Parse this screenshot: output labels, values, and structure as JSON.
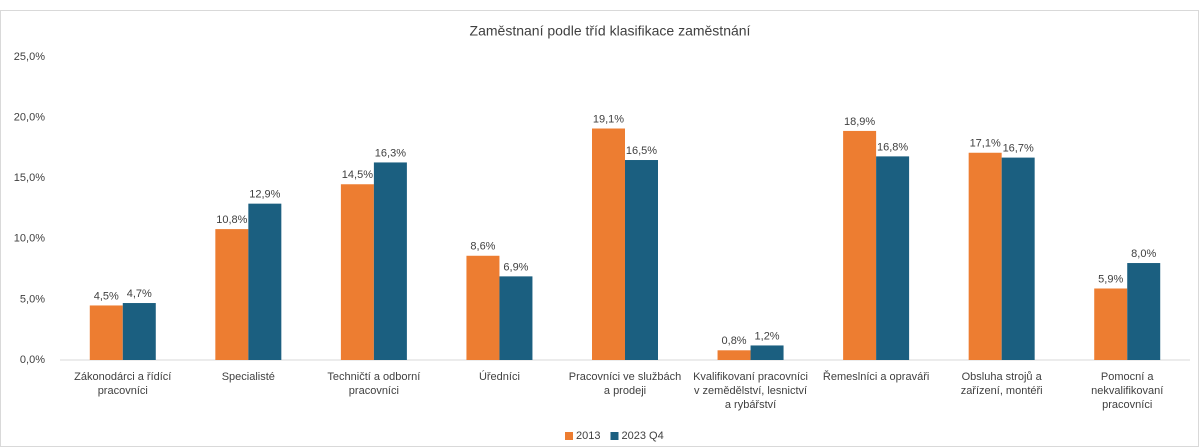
{
  "chart_data": {
    "type": "bar",
    "title": "Zaměstnaní podle tříd klasifikace zaměstnání",
    "categories": [
      "Zákonodárci a řídící pracovníci",
      "Specialisté",
      "Techničtí a odborní pracovníci",
      "Úředníci",
      "Pracovníci ve službách a prodeji",
      "Kvalifikovaní pracovníci v zemědělství, lesnictví a rybářství",
      "Řemeslníci a opraváři",
      "Obsluha strojů a zařízení, montéři",
      "Pomocní a nekvalifikovaní pracovníci"
    ],
    "series": [
      {
        "name": "2013",
        "color": "#ed7d31",
        "values": [
          4.5,
          10.8,
          14.5,
          8.6,
          19.1,
          0.8,
          18.9,
          17.1,
          5.9
        ],
        "value_labels": [
          "4,5%",
          "10,8%",
          "14,5%",
          "8,6%",
          "19,1%",
          "0,8%",
          "18,9%",
          "17,1%",
          "5,9%"
        ]
      },
      {
        "name": "2023 Q4",
        "color": "#1b5f80",
        "values": [
          4.7,
          12.9,
          16.3,
          6.9,
          16.5,
          1.2,
          16.8,
          16.7,
          8.0
        ],
        "value_labels": [
          "4,7%",
          "12,9%",
          "16,3%",
          "6,9%",
          "16,5%",
          "1,2%",
          "16,8%",
          "16,7%",
          "8,0%"
        ]
      }
    ],
    "ylim": [
      0,
      25
    ],
    "yticks": [
      {
        "value": 0,
        "label": "0,0%"
      },
      {
        "value": 5,
        "label": "5,0%"
      },
      {
        "value": 10,
        "label": "10,0%"
      },
      {
        "value": 15,
        "label": "15,0%"
      },
      {
        "value": 20,
        "label": "20,0%"
      },
      {
        "value": 25,
        "label": "25,0%"
      }
    ],
    "grid": false,
    "legend": "bottom"
  }
}
